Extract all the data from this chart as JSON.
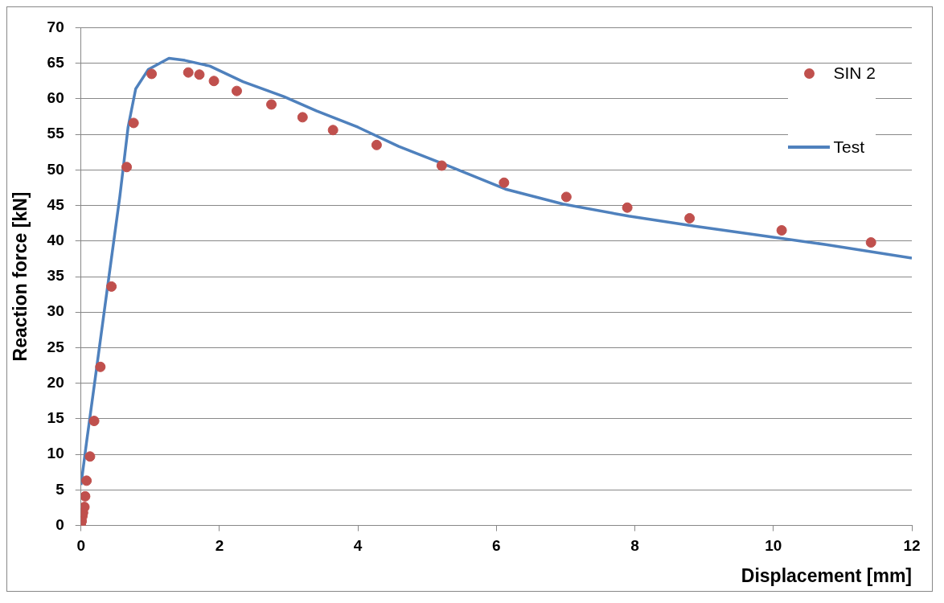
{
  "chart_data": {
    "type": "scatter",
    "xlabel": "Displacement [mm]",
    "ylabel": "Reaction force [kN]",
    "xlim": [
      0,
      12
    ],
    "xticks": [
      0,
      2,
      4,
      6,
      8,
      10,
      12
    ],
    "ylim": [
      0,
      70
    ],
    "yticks": [
      0,
      5,
      10,
      15,
      20,
      25,
      30,
      35,
      40,
      45,
      50,
      55,
      60,
      65,
      70
    ],
    "grid": "y",
    "legend": "top right",
    "series": [
      {
        "name": "SIN 2",
        "type": "scatter",
        "marker": "circle",
        "color": "#c0504d",
        "x": [
          0,
          0.01,
          0.02,
          0.03,
          0.05,
          0.06,
          0.08,
          0.13,
          0.19,
          0.28,
          0.44,
          0.66,
          0.76,
          1.02,
          1.55,
          1.71,
          1.92,
          2.25,
          2.75,
          3.2,
          3.64,
          4.27,
          5.21,
          6.11,
          7.01,
          7.89,
          8.79,
          10.12,
          11.41
        ],
        "values": [
          0,
          0.6,
          1.3,
          1.8,
          2.6,
          4.1,
          6.3,
          9.7,
          14.7,
          22.3,
          33.6,
          50.4,
          56.6,
          63.5,
          63.7,
          63.4,
          62.5,
          61.1,
          59.2,
          57.4,
          55.6,
          53.5,
          50.6,
          48.2,
          46.2,
          44.7,
          43.2,
          41.5,
          39.8
        ]
      },
      {
        "name": "Test",
        "type": "line",
        "marker": "none",
        "color": "#4f81bd",
        "x": [
          0,
          0.08,
          0.2,
          0.38,
          0.56,
          0.68,
          0.79,
          0.97,
          1.27,
          1.5,
          1.86,
          2.34,
          2.93,
          3.4,
          4.0,
          4.59,
          5.3,
          6.13,
          6.96,
          7.91,
          8.86,
          9.81,
          10.76,
          12
        ],
        "values": [
          5.7,
          11.7,
          20.3,
          33.3,
          46.2,
          56,
          61.4,
          64.1,
          65.7,
          65.4,
          64.6,
          62.4,
          60.3,
          58.3,
          56,
          53.3,
          50.6,
          47.3,
          45.2,
          43.5,
          42.1,
          40.8,
          39.5,
          37.6
        ]
      }
    ]
  }
}
